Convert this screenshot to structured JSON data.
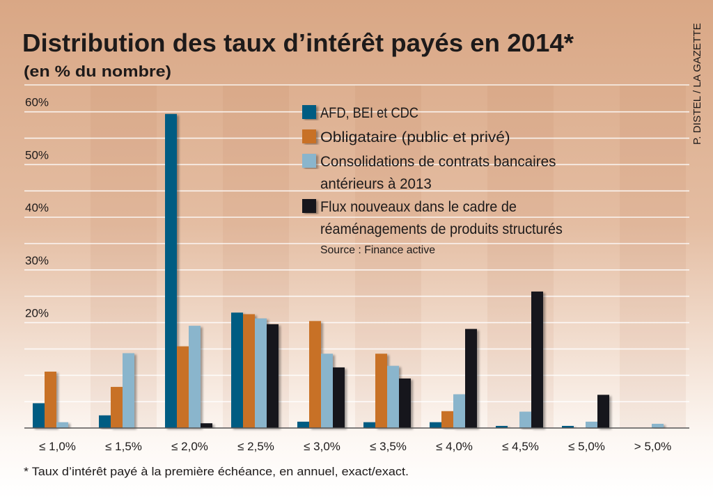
{
  "chart_data": {
    "type": "bar",
    "title": "Distribution des taux d’intérêt payés en 2014*",
    "subtitle": "(en % du nombre)",
    "credit": "P. DISTEL / LA GAZETTE",
    "source": "Source : Finance active",
    "footnote": "* Taux d’intérêt payé à la première échéance, en annuel, exact/exact.",
    "xlabel": "",
    "ylabel": "",
    "ylim": [
      0,
      60
    ],
    "yticks": [
      20,
      30,
      40,
      50,
      60
    ],
    "ytick_labels": [
      "20%",
      "30%",
      "40%",
      "50%",
      "60%"
    ],
    "grid": true,
    "grid_step": 5,
    "legend_placement": "top-center",
    "categories": [
      "≤ 1,0%",
      "≤ 1,5%",
      "≤ 2,0%",
      "≤ 2,5%",
      "≤ 3,0%",
      "≤ 3,5%",
      "≤ 4,0%",
      "≤ 4,5%",
      "≤ 5,0%",
      "> 5,0%"
    ],
    "series": [
      {
        "name": "AFD, BEI et CDC",
        "color": "#005b82",
        "values": [
          4.7,
          2.4,
          59.6,
          21.9,
          1.2,
          1.1,
          1.1,
          0.4,
          0.4,
          0
        ]
      },
      {
        "name": "Obligataire (public et privé)",
        "color": "#c87125",
        "values": [
          10.7,
          7.8,
          15.5,
          21.6,
          20.3,
          14.1,
          3.2,
          0,
          0,
          0
        ]
      },
      {
        "name": "Consolidations de contrats bancaires antérieurs à 2013",
        "name_lines": [
          "Consolidations de contrats bancaires",
          "antérieurs à 2013"
        ],
        "color": "#8ab5cc",
        "values": [
          1.1,
          14.2,
          19.4,
          20.8,
          14.1,
          11.8,
          6.4,
          3.1,
          1.2,
          0.8
        ]
      },
      {
        "name": "Flux nouveaux dans le cadre de réaménagements de produits structurés",
        "name_lines": [
          "Flux nouveaux dans le cadre de",
          "réaménagements de produits structurés"
        ],
        "color": "#15131b",
        "values": [
          0,
          0,
          0.9,
          19.7,
          11.5,
          9.4,
          18.8,
          25.9,
          6.3,
          0
        ]
      }
    ]
  }
}
